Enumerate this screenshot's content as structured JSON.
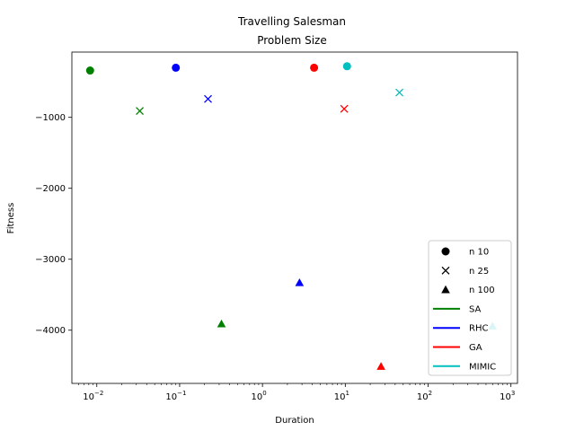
{
  "chart_data": {
    "type": "scatter",
    "title_line1": "Travelling Salesman",
    "title_line2": "Problem Size",
    "xlabel": "Duration",
    "ylabel": "Fitness",
    "xscale": "log",
    "xlim": [
      0.005,
      1200
    ],
    "ylim": [
      -4750,
      -80
    ],
    "grid": false,
    "legend_position": "bottom-right",
    "x_ticks": [
      {
        "value": 0.01,
        "base": "10",
        "exp": "−2"
      },
      {
        "value": 0.1,
        "base": "10",
        "exp": "−1"
      },
      {
        "value": 1,
        "base": "10",
        "exp": "0"
      },
      {
        "value": 10,
        "base": "10",
        "exp": "1"
      },
      {
        "value": 100,
        "base": "10",
        "exp": "2"
      },
      {
        "value": 1000,
        "base": "10",
        "exp": "3"
      }
    ],
    "y_ticks": [
      {
        "value": -1000,
        "label": "−1000"
      },
      {
        "value": -2000,
        "label": "−2000"
      },
      {
        "value": -3000,
        "label": "−3000"
      },
      {
        "value": -4000,
        "label": "−4000"
      }
    ],
    "colors": {
      "SA": "#008000",
      "RHC": "#0000ff",
      "GA": "#ff0000",
      "MIMIC": "#00bfbf"
    },
    "points": [
      {
        "algorithm": "SA",
        "size": "n 10",
        "marker": "circle",
        "x": 0.0083,
        "y": -340
      },
      {
        "algorithm": "SA",
        "size": "n 25",
        "marker": "x",
        "x": 0.033,
        "y": -910
      },
      {
        "algorithm": "SA",
        "size": "n 100",
        "marker": "triangle",
        "x": 0.32,
        "y": -3910
      },
      {
        "algorithm": "RHC",
        "size": "n 10",
        "marker": "circle",
        "x": 0.09,
        "y": -300
      },
      {
        "algorithm": "RHC",
        "size": "n 25",
        "marker": "x",
        "x": 0.22,
        "y": -740
      },
      {
        "algorithm": "RHC",
        "size": "n 100",
        "marker": "triangle",
        "x": 2.8,
        "y": -3330
      },
      {
        "algorithm": "GA",
        "size": "n 10",
        "marker": "circle",
        "x": 4.2,
        "y": -300
      },
      {
        "algorithm": "GA",
        "size": "n 25",
        "marker": "x",
        "x": 9.7,
        "y": -880
      },
      {
        "algorithm": "GA",
        "size": "n 100",
        "marker": "triangle",
        "x": 27,
        "y": -4510
      },
      {
        "algorithm": "MIMIC",
        "size": "n 10",
        "marker": "circle",
        "x": 10.5,
        "y": -280
      },
      {
        "algorithm": "MIMIC",
        "size": "n 25",
        "marker": "x",
        "x": 45,
        "y": -650
      },
      {
        "algorithm": "MIMIC",
        "size": "n 100",
        "marker": "triangle",
        "x": 600,
        "y": -3940
      }
    ],
    "legend": [
      {
        "label": "n 10",
        "kind": "marker",
        "marker": "circle",
        "color": "#000000"
      },
      {
        "label": "n 25",
        "kind": "marker",
        "marker": "x",
        "color": "#000000"
      },
      {
        "label": "n 100",
        "kind": "marker",
        "marker": "triangle",
        "color": "#000000"
      },
      {
        "label": "SA",
        "kind": "line",
        "color": "#008000"
      },
      {
        "label": "RHC",
        "kind": "line",
        "color": "#0000ff"
      },
      {
        "label": "GA",
        "kind": "line",
        "color": "#ff0000"
      },
      {
        "label": "MIMIC",
        "kind": "line",
        "color": "#00bfbf"
      }
    ]
  }
}
